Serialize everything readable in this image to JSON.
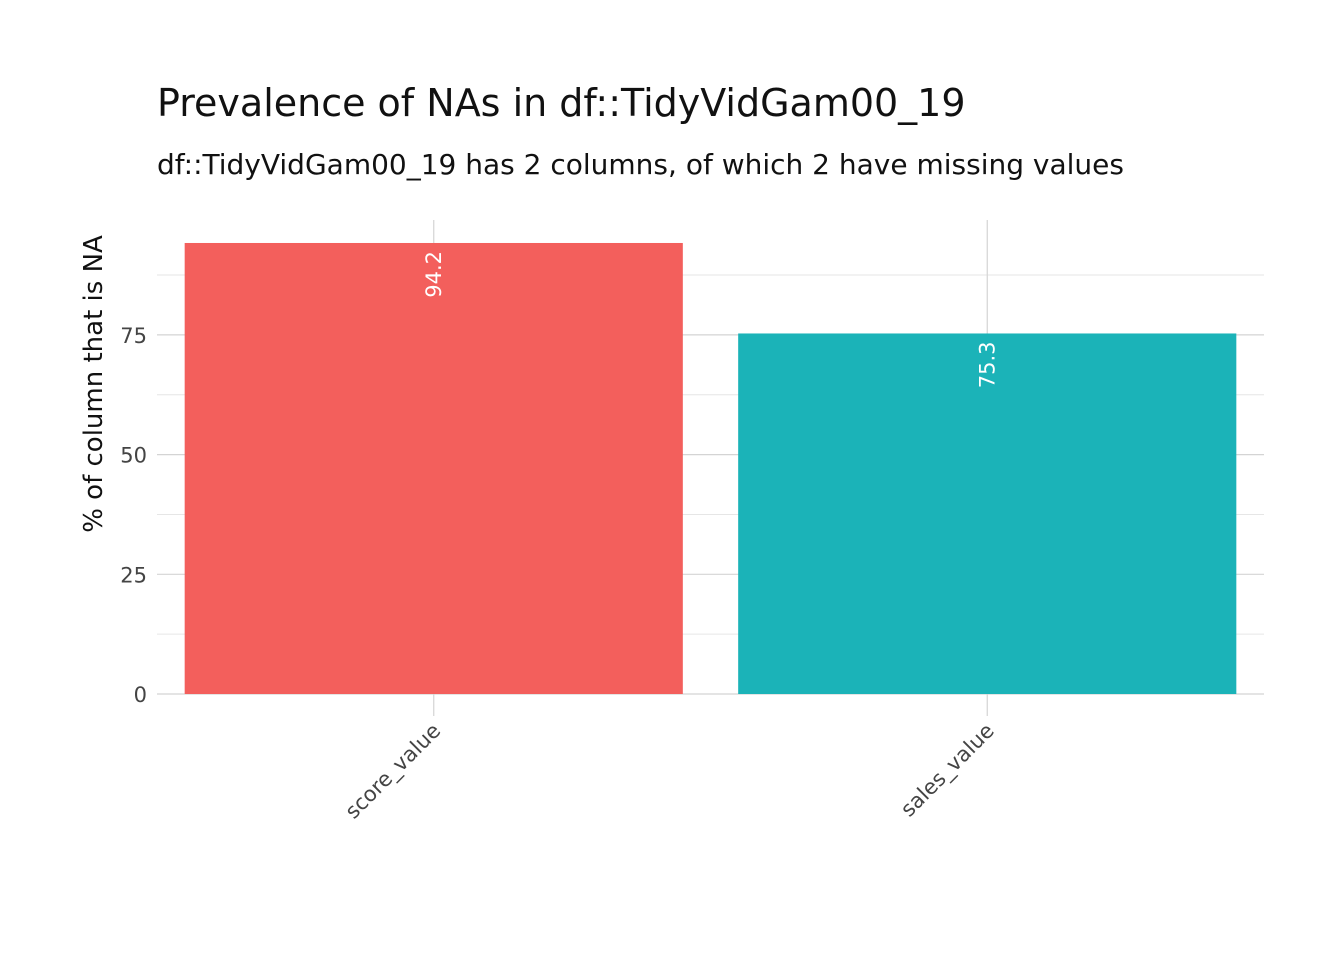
{
  "chart_data": {
    "type": "bar",
    "title": "Prevalence of NAs in df::TidyVidGam00_19",
    "subtitle": "df::TidyVidGam00_19 has 2 columns, of which 2 have missing values",
    "xlabel": "",
    "ylabel": "% of column that is NA",
    "categories": [
      "score_value",
      "sales_value"
    ],
    "values": [
      94.2,
      75.3
    ],
    "data_labels": [
      "94.2",
      "75.3"
    ],
    "colors": [
      "#F35F5C",
      "#1BB3B8"
    ],
    "ylim": [
      0,
      99
    ],
    "y_ticks": [
      0,
      25,
      50,
      75
    ],
    "y_tick_labels": [
      "0",
      "25",
      "50",
      "75"
    ],
    "y_minor_ticks": [
      12.5,
      37.5,
      62.5,
      87.5
    ],
    "grid": true,
    "legend": "none"
  }
}
